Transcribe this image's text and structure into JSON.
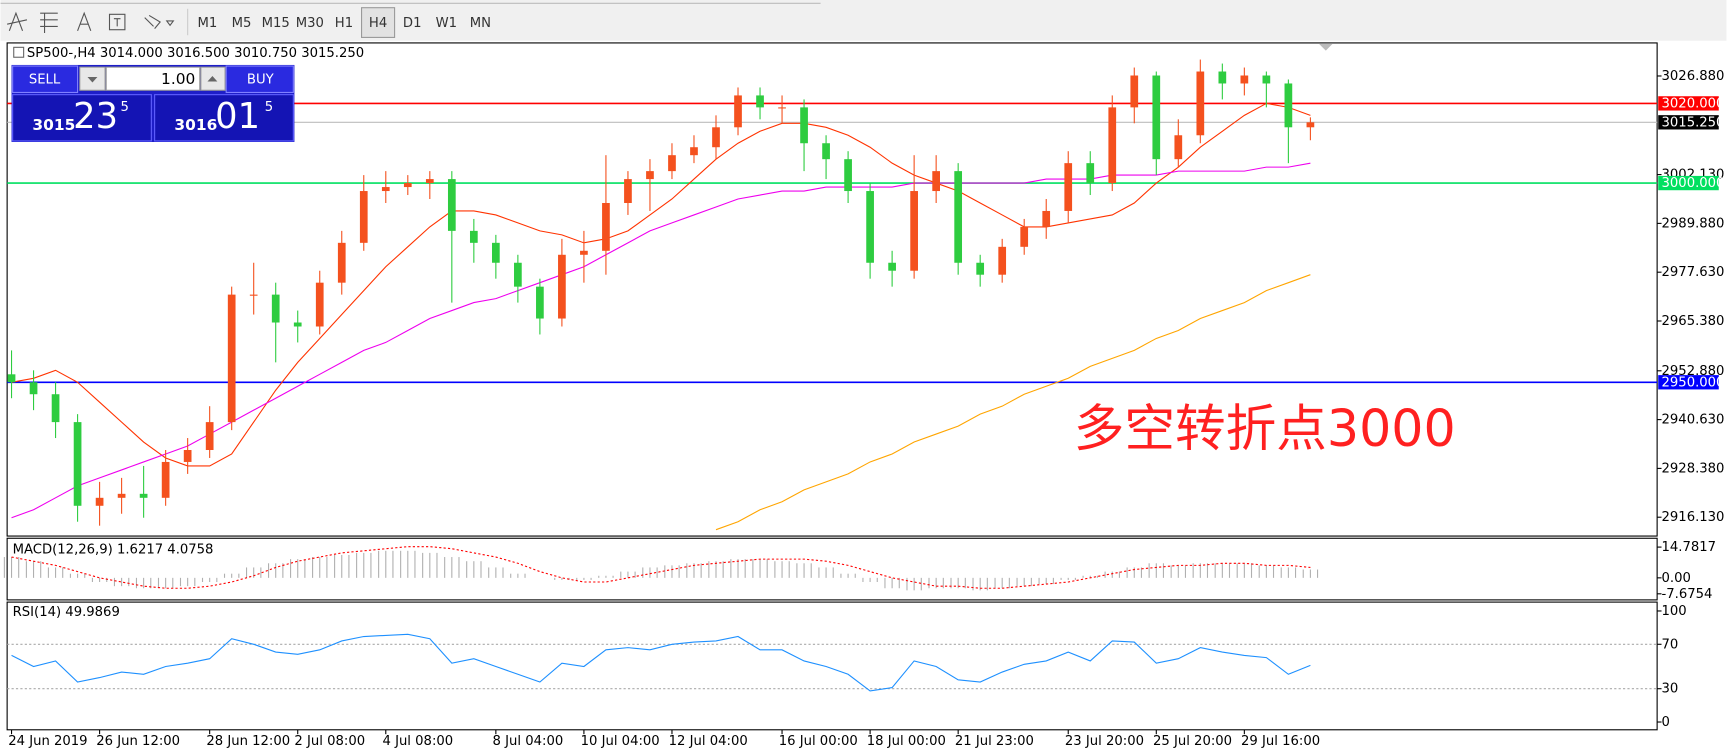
{
  "toolbar": {
    "timeframes": [
      "M1",
      "M5",
      "M15",
      "M30",
      "H1",
      "H4",
      "D1",
      "W1",
      "MN"
    ],
    "active": "H4"
  },
  "trade_panel": {
    "sell": "SELL",
    "buy": "BUY",
    "lots": "1.00",
    "sell_price": [
      "3015",
      "23",
      "5"
    ],
    "buy_price": [
      "3016",
      "01",
      "5"
    ]
  },
  "chart_data": [
    {
      "type": "candlestick",
      "header": "SP500-,H4  3014.000 3016.500 3010.750 3015.250",
      "categories": [
        "24 Jun 2019",
        null,
        null,
        null,
        "26 Jun 12:00",
        null,
        null,
        null,
        null,
        "28 Jun 12:00",
        null,
        null,
        null,
        "2 Jul 08:00",
        null,
        null,
        null,
        "4 Jul 08:00",
        null,
        null,
        null,
        null,
        "8 Jul 04:00",
        null,
        null,
        null,
        "10 Jul 04:00",
        null,
        null,
        null,
        "12 Jul 04:00",
        null,
        null,
        null,
        null,
        "16 Jul 00:00",
        null,
        null,
        null,
        "18 Jul 00:00",
        null,
        null,
        null,
        "21 Jul 23:00",
        null,
        null,
        null,
        null,
        "23 Jul 20:00",
        null,
        null,
        null,
        "25 Jul 20:00",
        null,
        null,
        null,
        "29 Jul 16:00",
        null,
        null,
        null
      ],
      "open": [
        2952,
        2950,
        2947,
        2940,
        2919,
        2921,
        2922,
        2921,
        2930,
        2933,
        2940,
        2972,
        2972,
        2965,
        2964,
        2975,
        2985,
        2998,
        2999,
        3000,
        3001,
        2988,
        2985,
        2980,
        2974,
        2966,
        2982,
        2983,
        2995,
        3001,
        3003,
        3007,
        3009,
        3014,
        3022,
        3019,
        3019,
        3010,
        3006,
        2998,
        2980,
        2978,
        2998,
        3003,
        2980,
        2977,
        2984,
        2989,
        2993,
        3005,
        3000,
        3019,
        3027,
        3006,
        3012,
        3028,
        3025,
        3027,
        3025,
        3014
      ],
      "high": [
        2958,
        2953,
        2950,
        2942,
        2925,
        2926,
        2929,
        2933,
        2936,
        2944,
        2974,
        2980,
        2975,
        2968,
        2978,
        2988,
        3002,
        3003,
        3002,
        3003,
        3003,
        2991,
        2987,
        2982,
        2976,
        2986,
        2988,
        3007,
        3003,
        3006,
        3010,
        3012,
        3017,
        3024,
        3024,
        3022,
        3021,
        3012,
        3008,
        3000,
        2983,
        3007,
        3007,
        3005,
        2982,
        2986,
        2991,
        2996,
        3008,
        3008,
        3022,
        3029,
        3028,
        3016,
        3031,
        3030,
        3029,
        3028,
        3026,
        3016.5
      ],
      "low": [
        2946,
        2943,
        2936,
        2915,
        2914,
        2917,
        2916,
        2919,
        2927,
        2931,
        2938,
        2967,
        2955,
        2960,
        2962,
        2972,
        2983,
        2995,
        2997,
        2996,
        2970,
        2980,
        2976,
        2970,
        2962,
        2964,
        2975,
        2977,
        2992,
        2993,
        3001,
        3005,
        3006,
        3012,
        3016,
        3015,
        3003,
        3001,
        2995,
        2976,
        2974,
        2976,
        2995,
        2977,
        2974,
        2975,
        2982,
        2986,
        2990,
        2997,
        2998,
        3015,
        3002,
        3004,
        3010,
        3021,
        3022,
        3019,
        3005,
        3010.75
      ],
      "close": [
        2950,
        2947,
        2940,
        2919,
        2921,
        2922,
        2921,
        2930,
        2933,
        2940,
        2972,
        2972,
        2965,
        2964,
        2975,
        2985,
        2998,
        2999,
        3000,
        3001,
        2988,
        2985,
        2980,
        2974,
        2966,
        2982,
        2983,
        2995,
        3001,
        3003,
        3007,
        3009,
        3014,
        3022,
        3019,
        3019,
        3010,
        3006,
        2998,
        2980,
        2978,
        2998,
        3003,
        2980,
        2977,
        2984,
        2989,
        2993,
        3005,
        3000,
        3019,
        3027,
        3006,
        3012,
        3028,
        3025,
        3027,
        3025,
        3014,
        3015.25
      ],
      "up_color": "#f4511e",
      "down_color": "#2ecc40",
      "lines": [
        {
          "color": "#ff3300",
          "values": [
            2950,
            2951,
            2953,
            2950,
            2945,
            2940,
            2935,
            2931,
            2929,
            2929,
            2932,
            2940,
            2948,
            2955,
            2961,
            2967,
            2973,
            2979,
            2984,
            2989,
            2993,
            2993,
            2992,
            2990,
            2988,
            2987,
            2985,
            2986,
            2988,
            2992,
            2996,
            3001,
            3006,
            3010,
            3013,
            3015,
            3015,
            3014,
            3012,
            3009,
            3005,
            3002,
            3000,
            2998,
            2995,
            2992,
            2989,
            2989,
            2990,
            2991,
            2992,
            2995,
            3000,
            3004,
            3009,
            3013,
            3017,
            3020,
            3019,
            3017
          ]
        },
        {
          "color": "#ee00ee",
          "values": [
            2916,
            2918,
            2921,
            2924,
            2926,
            2928,
            2930,
            2932,
            2934,
            2937,
            2940,
            2943,
            2946,
            2949,
            2952,
            2955,
            2958,
            2960,
            2963,
            2966,
            2968,
            2970,
            2971,
            2973,
            2975,
            2977,
            2979,
            2982,
            2985,
            2988,
            2990,
            2992,
            2994,
            2996,
            2997,
            2998,
            2998,
            2999,
            2999,
            2999,
            2999,
            3000,
            3000,
            3000,
            3000,
            3000,
            3000,
            3001,
            3001,
            3001,
            3002,
            3002,
            3002,
            3003,
            3003,
            3003,
            3003,
            3004,
            3004,
            3005
          ]
        },
        {
          "color": "#ffa500",
          "values": [
            null,
            null,
            null,
            null,
            null,
            null,
            null,
            null,
            null,
            null,
            null,
            null,
            null,
            null,
            null,
            null,
            null,
            null,
            null,
            null,
            null,
            null,
            null,
            null,
            null,
            null,
            null,
            null,
            null,
            null,
            null,
            null,
            2913,
            2915,
            2918,
            2920,
            2923,
            2925,
            2927,
            2930,
            2932,
            2935,
            2937,
            2939,
            2942,
            2944,
            2947,
            2949,
            2951,
            2954,
            2956,
            2958,
            2961,
            2963,
            2966,
            2968,
            2970,
            2973,
            2975,
            2977
          ]
        }
      ],
      "hlines": [
        {
          "value": 3020,
          "label": "3020.000",
          "color": "#ff0000"
        },
        {
          "value": 3015.25,
          "label": "3015.250",
          "color": "#000000"
        },
        {
          "value": 3000,
          "label": "3000.000",
          "color": "#00e060"
        },
        {
          "value": 2950,
          "label": "2950.000",
          "color": "#0000ff"
        }
      ],
      "annotation": "多空转折点3000",
      "ylim": [
        2911.4,
        3034.9
      ],
      "yticks": [
        {
          "value": 3026.88,
          "label": "3026.880"
        },
        {
          "value": 3002.13,
          "label": "3002.130"
        },
        {
          "value": 2989.88,
          "label": "2989.880"
        },
        {
          "value": 2977.63,
          "label": "2977.630"
        },
        {
          "value": 2965.38,
          "label": "2965.380"
        },
        {
          "value": 2952.88,
          "label": "2952.880"
        },
        {
          "value": 2940.63,
          "label": "2940.630"
        },
        {
          "value": 2928.38,
          "label": "2928.380"
        },
        {
          "value": 2916.13,
          "label": "2916.130"
        }
      ]
    },
    {
      "type": "macd",
      "label": "MACD(12,26,9) 1.6217 4.0758",
      "histogram": [
        10,
        8,
        5,
        2,
        -2,
        -4,
        -5,
        -5,
        -4,
        -2,
        2,
        5,
        7,
        9,
        10,
        11,
        12,
        13,
        13,
        12,
        10,
        8,
        5,
        2,
        0,
        -1,
        -1,
        1,
        3,
        5,
        6,
        7,
        8,
        9,
        9,
        8,
        7,
        5,
        2,
        -2,
        -5,
        -6,
        -5,
        -5,
        -6,
        -5,
        -4,
        -3,
        -1,
        1,
        3,
        5,
        7,
        6,
        7,
        7,
        7,
        6,
        5,
        4
      ],
      "signal": [
        10,
        8,
        6,
        3,
        0,
        -2,
        -4,
        -5,
        -5,
        -4,
        -2,
        1,
        5,
        8,
        10,
        12,
        13,
        14,
        15,
        15,
        14,
        12,
        10,
        7,
        3,
        0,
        -2,
        -2,
        0,
        2,
        4,
        6,
        7,
        8,
        9,
        9,
        9,
        8,
        6,
        3,
        0,
        -2,
        -4,
        -4,
        -5,
        -5,
        -4,
        -3,
        -2,
        0,
        2,
        4,
        5,
        6,
        6,
        7,
        7,
        6,
        6,
        5
      ],
      "histogram_color": "#b0b0b0",
      "signal_color": "#ff0000",
      "ylim": [
        -10.6,
        18.5
      ],
      "yticks": [
        14.7817,
        {
          "value": 0,
          "label": "0.00"
        },
        -7.6754
      ]
    },
    {
      "type": "line",
      "label": "RSI(14) 49.9869",
      "values": [
        60,
        50,
        55,
        36,
        40,
        45,
        43,
        50,
        53,
        57,
        75,
        70,
        63,
        61,
        65,
        73,
        77,
        78,
        79,
        75,
        53,
        57,
        50,
        43,
        36,
        53,
        50,
        65,
        67,
        65,
        70,
        72,
        73,
        77,
        65,
        65,
        55,
        50,
        43,
        28,
        31,
        55,
        50,
        38,
        36,
        45,
        52,
        55,
        63,
        55,
        73,
        72,
        53,
        57,
        67,
        63,
        60,
        58,
        43,
        51
      ],
      "color": "#1e90ff",
      "levels": [
        70,
        30
      ],
      "ylim": [
        -6,
        107
      ],
      "yticks": [
        100,
        70,
        30,
        0
      ]
    }
  ]
}
